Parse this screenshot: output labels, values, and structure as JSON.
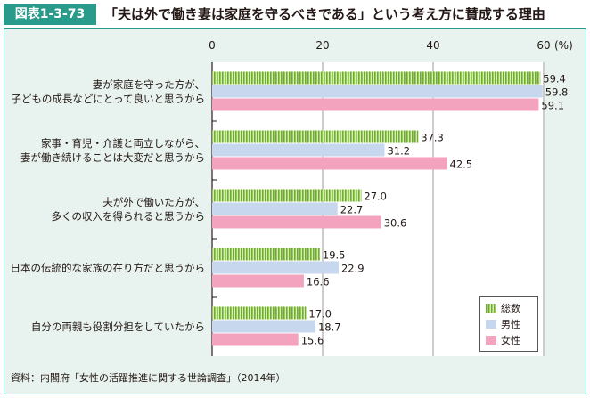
{
  "figure": {
    "label": "図表1-3-73",
    "title": "「夫は外で働き妻は家庭を守るべきである」という考え方に賛成する理由"
  },
  "source": "資料：内閣府「女性の活躍推進に関する世論調査」（2014年）",
  "chart_data": {
    "type": "bar",
    "orientation": "horizontal",
    "categories": [
      [
        "妻が家庭を守った方が、",
        "子どもの成長などにとって良いと思うから"
      ],
      [
        "家事・育児・介護と両立しながら、",
        "妻が働き続けることは大変だと思うから"
      ],
      [
        "夫が外で働いた方が、",
        "多くの収入を得られると思うから"
      ],
      [
        "日本の伝統的な家族の在り方だと思うから"
      ],
      [
        "自分の両親も役割分担をしていたから"
      ]
    ],
    "series": [
      {
        "name": "総数",
        "color": "#8dc63f",
        "pattern": "vertical-stripes",
        "values": [
          59.4,
          37.3,
          27.0,
          19.5,
          17.0
        ]
      },
      {
        "name": "男性",
        "color": "#c7d7ee",
        "values": [
          59.8,
          31.2,
          22.7,
          22.9,
          18.7
        ]
      },
      {
        "name": "女性",
        "color": "#f4a3bf",
        "values": [
          59.1,
          42.5,
          30.6,
          16.6,
          15.6
        ]
      }
    ],
    "x_ticks": [
      0,
      20,
      40,
      60
    ],
    "x_unit": "(%)",
    "xlim": [
      0,
      60
    ],
    "grid": true,
    "legend_position": "bottom-right"
  }
}
